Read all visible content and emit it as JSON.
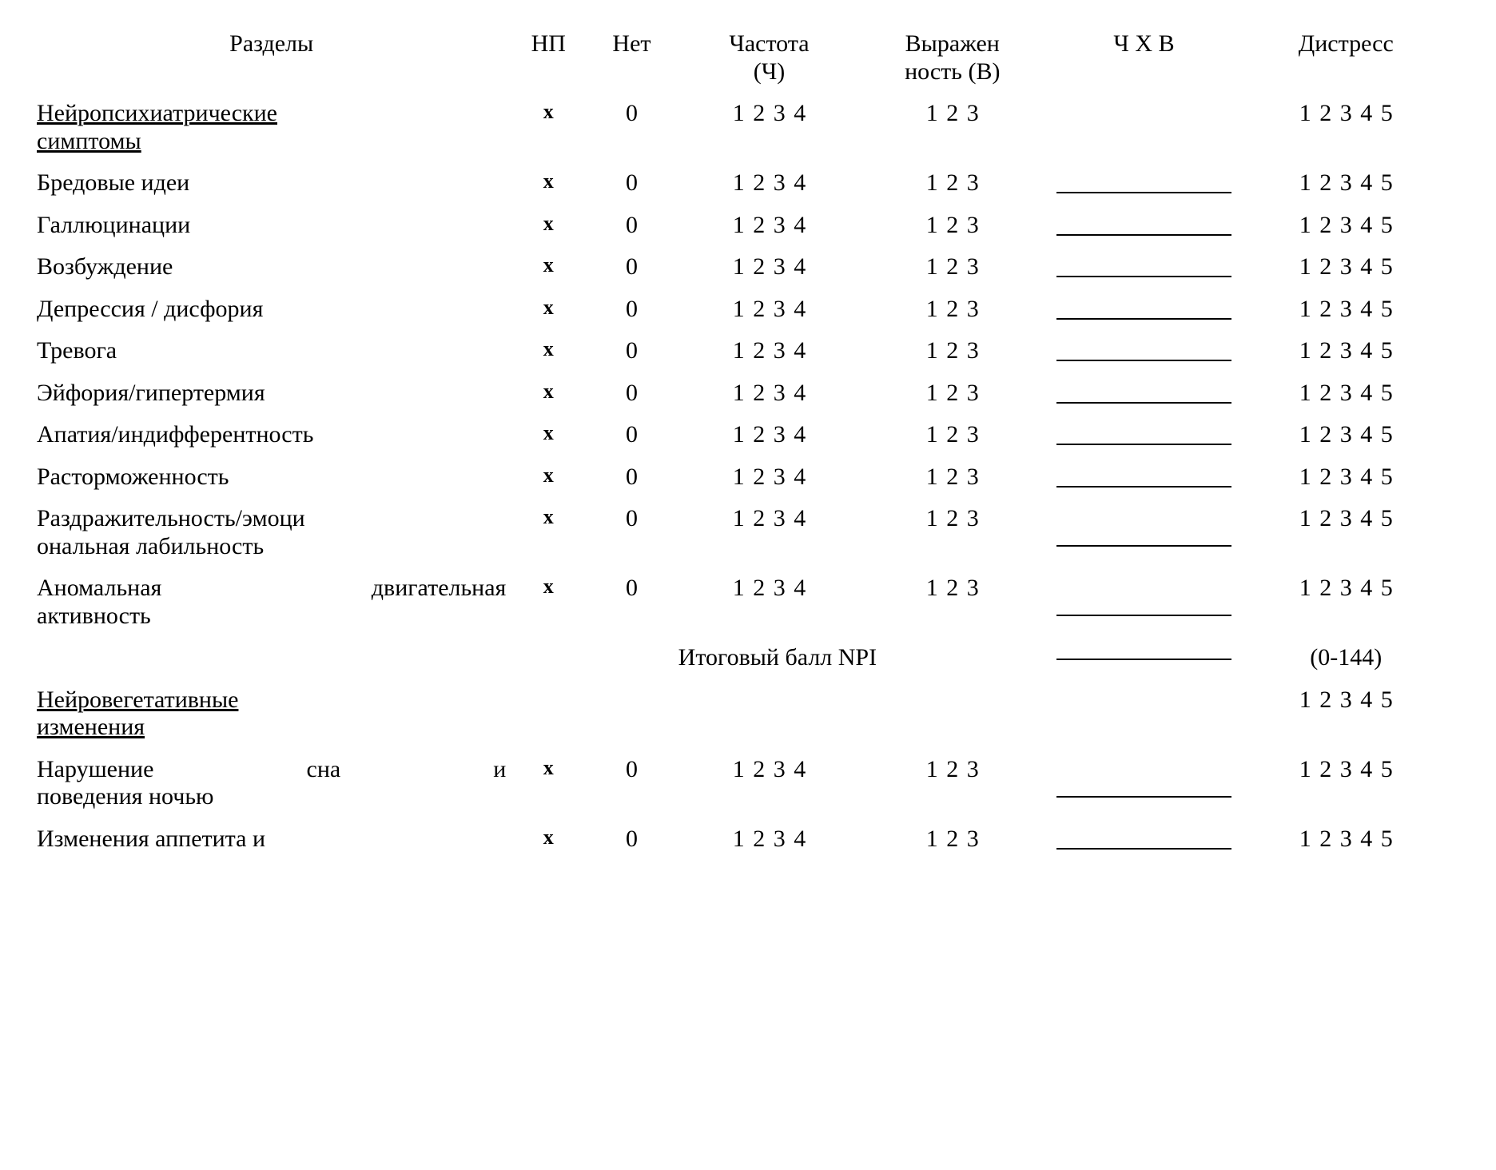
{
  "headers": {
    "label": "Разделы",
    "np": "НП",
    "net": "Нет",
    "freq_line1": "Частота",
    "freq_line2": "(Ч)",
    "sev_line1": "Выражен",
    "sev_line2": "ность (В)",
    "chxb": "Ч Х В",
    "distress": "Дистресс"
  },
  "scales": {
    "x": "x",
    "zero": "0",
    "freq": [
      "1",
      "2",
      "3",
      "4"
    ],
    "sev": [
      "1",
      "2",
      "3"
    ],
    "distress": [
      "1",
      "2",
      "3",
      "4",
      "5"
    ]
  },
  "section_a_title": "Нейропсихиатрические симптомы",
  "section_a_title_line1": "Нейропсихиатрические",
  "section_a_title_line2": "симптомы",
  "rows_a": [
    {
      "label_lines": [
        "Бредовые идеи"
      ],
      "justify": false
    },
    {
      "label_lines": [
        "Галлюцинации"
      ],
      "justify": false
    },
    {
      "label_lines": [
        "Возбуждение"
      ],
      "justify": false
    },
    {
      "label_lines": [
        "Депрессия / дисфория"
      ],
      "justify": false
    },
    {
      "label_lines": [
        "Тревога"
      ],
      "justify": false
    },
    {
      "label_lines": [
        "Эйфория/гипертермия"
      ],
      "justify": false
    },
    {
      "label_lines": [
        "Апатия/индифферентность"
      ],
      "justify": false
    },
    {
      "label_lines": [
        "Расторможенность"
      ],
      "justify": false
    },
    {
      "label_lines": [
        "Раздражительность/эмоци",
        "ональная лабильность"
      ],
      "justify": false
    },
    {
      "label_lines": [
        "Аномальная двигательная",
        "активность"
      ],
      "justify": true,
      "gap_before": true
    }
  ],
  "total": {
    "label": "Итоговый балл NPI",
    "range": "(0-144)"
  },
  "section_b_title_line1": "Нейровегетативные",
  "section_b_title_line2": "изменения",
  "rows_b": [
    {
      "label_lines": [
        "Нарушение сна и",
        "поведения ночью"
      ],
      "justify": true
    },
    {
      "label_lines": [
        "Изменения аппетита и"
      ],
      "justify": true
    }
  ],
  "style": {
    "font_family": "Times New Roman",
    "font_size_pt": 22,
    "text_color": "#000000",
    "background_color": "#ffffff",
    "underline_color": "#000000"
  }
}
